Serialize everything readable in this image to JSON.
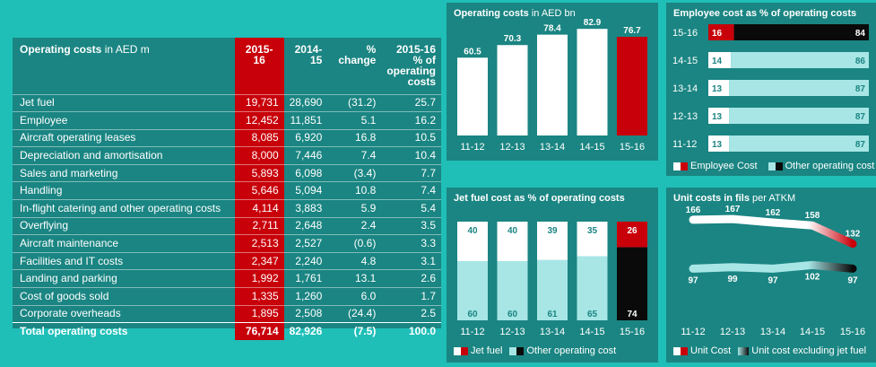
{
  "table": {
    "header": {
      "label_bold": "Operating costs",
      "label_unit": "in AED m",
      "col_current": "2015-16",
      "col_prior": "2014-15",
      "col_change": "% change",
      "col_share": [
        "2015-16",
        "% of",
        "operating",
        "costs"
      ]
    },
    "rows": [
      {
        "label": "Jet fuel",
        "current": "19,731",
        "prior": "28,690",
        "change": "(31.2)",
        "share": "25.7"
      },
      {
        "label": "Employee",
        "current": "12,452",
        "prior": "11,851",
        "change": "5.1",
        "share": "16.2"
      },
      {
        "label": "Aircraft operating leases",
        "current": "8,085",
        "prior": "6,920",
        "change": "16.8",
        "share": "10.5"
      },
      {
        "label": "Depreciation and amortisation",
        "current": "8,000",
        "prior": "7,446",
        "change": "7.4",
        "share": "10.4"
      },
      {
        "label": "Sales and marketing",
        "current": "5,893",
        "prior": "6,098",
        "change": "(3.4)",
        "share": "7.7"
      },
      {
        "label": "Handling",
        "current": "5,646",
        "prior": "5,094",
        "change": "10.8",
        "share": "7.4"
      },
      {
        "label": "In-flight catering and other operating costs",
        "current": "4,114",
        "prior": "3,883",
        "change": "5.9",
        "share": "5.4"
      },
      {
        "label": "Overflying",
        "current": "2,711",
        "prior": "2,648",
        "change": "2.4",
        "share": "3.5"
      },
      {
        "label": "Aircraft maintenance",
        "current": "2,513",
        "prior": "2,527",
        "change": "(0.6)",
        "share": "3.3"
      },
      {
        "label": "Facilities and IT costs",
        "current": "2,347",
        "prior": "2,240",
        "change": "4.8",
        "share": "3.1"
      },
      {
        "label": "Landing and parking",
        "current": "1,992",
        "prior": "1,761",
        "change": "13.1",
        "share": "2.6"
      },
      {
        "label": "Cost of goods sold",
        "current": "1,335",
        "prior": "1,260",
        "change": "6.0",
        "share": "1.7"
      },
      {
        "label": "Corporate overheads",
        "current": "1,895",
        "prior": "2,508",
        "change": "(24.4)",
        "share": "2.5"
      }
    ],
    "total": {
      "label": "Total operating costs",
      "current": "76,714",
      "prior": "82,926",
      "change": "(7.5)",
      "share": "100.0"
    }
  },
  "colors": {
    "page_bg": "#1fbfb8",
    "panel_bg": "#1a8582",
    "highlight_red": "#c8000a",
    "white": "#ffffff",
    "light_teal": "#a8e6e6",
    "black": "#0a0a0a"
  },
  "chart_data": [
    {
      "id": "operating-costs",
      "type": "bar",
      "title": "Operating costs",
      "title_unit": "in AED bn",
      "categories": [
        "11-12",
        "12-13",
        "13-14",
        "14-15",
        "15-16"
      ],
      "values": [
        60.5,
        70.3,
        78.4,
        82.9,
        76.7
      ],
      "value_labels": [
        "60.5",
        "70.3",
        "78.4",
        "82.9",
        "76.7"
      ],
      "highlight_index": 4,
      "ylim": [
        0,
        90
      ]
    },
    {
      "id": "employee-cost-share",
      "type": "bar",
      "orientation": "horizontal-stacked",
      "title": "Employee cost as % of operating costs",
      "categories": [
        "15-16",
        "14-15",
        "13-14",
        "12-13",
        "11-12"
      ],
      "series": [
        {
          "name": "Employee Cost",
          "values": [
            16,
            14,
            13,
            13,
            13
          ]
        },
        {
          "name": "Other operating cost",
          "values": [
            84,
            86,
            87,
            87,
            87
          ]
        }
      ],
      "highlight_index": 0,
      "legend": "bottom"
    },
    {
      "id": "jet-fuel-share",
      "type": "bar",
      "orientation": "vertical-stacked",
      "title": "Jet fuel cost as % of operating costs",
      "categories": [
        "11-12",
        "12-13",
        "13-14",
        "14-15",
        "15-16"
      ],
      "series": [
        {
          "name": "Jet fuel",
          "values": [
            40,
            40,
            39,
            35,
            26
          ]
        },
        {
          "name": "Other operating cost",
          "values": [
            60,
            60,
            61,
            65,
            74
          ]
        }
      ],
      "highlight_index": 4,
      "legend": "bottom"
    },
    {
      "id": "unit-costs",
      "type": "line",
      "title": "Unit costs in fils",
      "title_unit": "per ATKM",
      "categories": [
        "11-12",
        "12-13",
        "13-14",
        "14-15",
        "15-16"
      ],
      "series": [
        {
          "name": "Unit Cost",
          "values": [
            166,
            167,
            162,
            158,
            132
          ]
        },
        {
          "name": "Unit cost excluding jet fuel",
          "values": [
            97,
            99,
            97,
            102,
            97
          ]
        }
      ],
      "legend": "bottom"
    }
  ]
}
